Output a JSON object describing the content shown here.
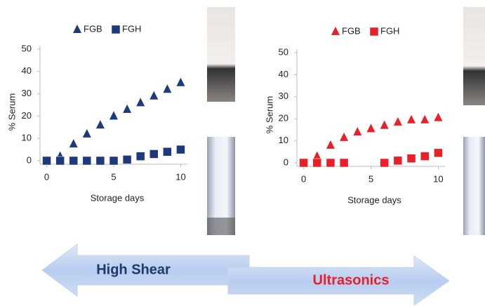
{
  "chart_data": [
    {
      "type": "scatter",
      "x_label": "Storage days",
      "y_label": "% Serum",
      "x": [
        0,
        1,
        2,
        3,
        4,
        5,
        6,
        7,
        8,
        9,
        10
      ],
      "series": [
        {
          "name": "FGB",
          "color": "#1f3a7a",
          "marker": "triangle",
          "values": [
            0,
            2,
            7.5,
            12,
            16,
            20,
            23,
            26,
            29,
            32,
            35
          ]
        },
        {
          "name": "FGH",
          "color": "#1f3a7a",
          "marker": "square",
          "values": [
            0,
            0,
            0,
            0,
            0,
            0,
            0.5,
            2,
            3,
            4,
            5
          ]
        }
      ],
      "xlim": [
        -0.5,
        10.5
      ],
      "xticks": [
        0,
        5,
        10
      ],
      "ylim": [
        0,
        50
      ],
      "yticks": [
        0,
        10,
        20,
        30,
        40,
        50
      ],
      "legend": "top"
    },
    {
      "type": "scatter",
      "x_label": "Storage days",
      "y_label": "% Serum",
      "x": [
        0,
        1,
        2,
        3,
        4,
        5,
        6,
        7,
        8,
        9,
        10
      ],
      "series": [
        {
          "name": "FGB",
          "color": "#e8202a",
          "marker": "triangle",
          "values": [
            0,
            3,
            8,
            11.5,
            14,
            15.5,
            17,
            18.5,
            19.5,
            19.5,
            20.5
          ]
        },
        {
          "name": "FGH",
          "color": "#e8202a",
          "marker": "square",
          "values": [
            0,
            0,
            0,
            0,
            null,
            null,
            0,
            1,
            2,
            3,
            4.5
          ]
        }
      ],
      "xlim": [
        -0.5,
        10.5
      ],
      "xticks": [
        0,
        5,
        10
      ],
      "ylim": [
        0,
        50
      ],
      "yticks": [
        0,
        10,
        20,
        30,
        40,
        50
      ],
      "legend": "top"
    }
  ],
  "arrows": {
    "left": "High Shear",
    "right": "Ultrasonics"
  }
}
